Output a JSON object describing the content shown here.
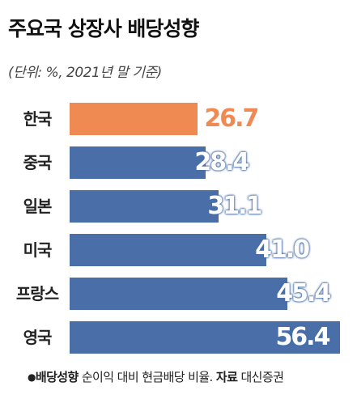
{
  "header": {
    "title": "주요국 상장사 배당성향",
    "subtitle": "(단위: %, 2021년 말 기준)"
  },
  "footnote": {
    "bullet": "●",
    "term": "배당성향",
    "definition": " 순이익 대비 현금배당 비율. ",
    "source_label": "자료",
    "source": " 대신증권"
  },
  "colors": {
    "highlight": "#EF8A52",
    "default": "#4A6FA8",
    "highlight_value": "#EF8A52",
    "inside_value": "#ffffff"
  },
  "chart_data": {
    "type": "bar",
    "orientation": "horizontal",
    "categories": [
      "한국",
      "중국",
      "일본",
      "미국",
      "프랑스",
      "영국"
    ],
    "values": [
      26.7,
      28.4,
      31.1,
      41.0,
      45.4,
      56.4
    ],
    "value_labels": [
      "26.7",
      "28.4",
      "31.1",
      "41.0",
      "45.4",
      "56.4"
    ],
    "highlight_index": 0,
    "title": "주요국 상장사 배당성향",
    "unit": "%",
    "grid": false,
    "legend": "none"
  }
}
